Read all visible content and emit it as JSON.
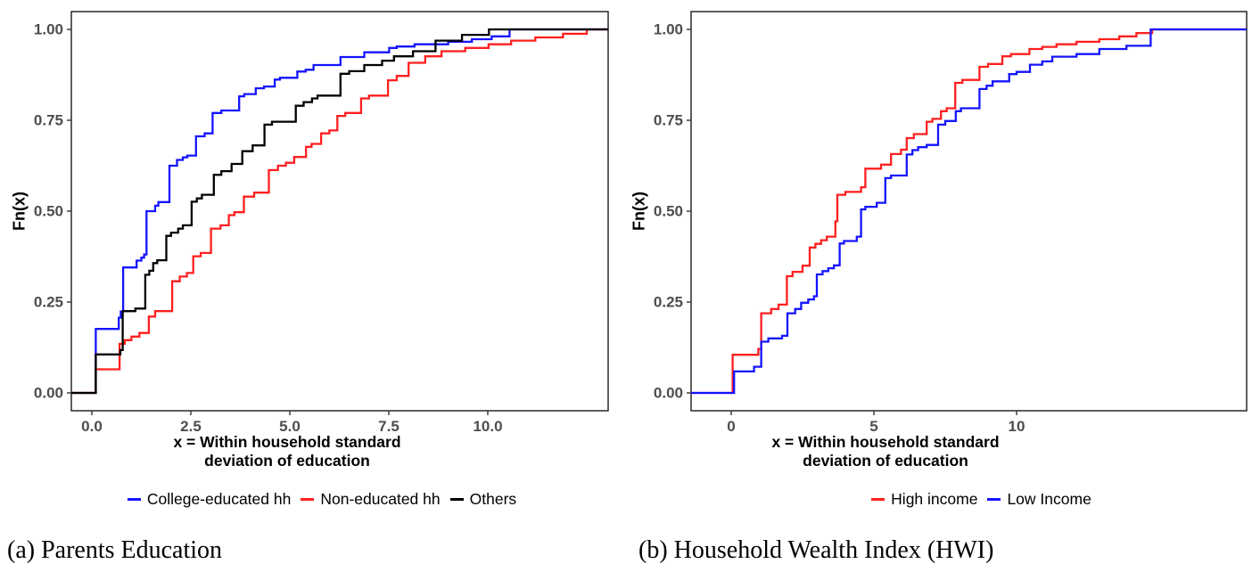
{
  "figure": {
    "caption_a": "(a) Parents Education",
    "caption_b": "(b) Household Wealth Index (HWI)"
  },
  "colors": {
    "blue": "#1414ff",
    "red": "#ff1f1f",
    "black": "#000000",
    "tick_text": "#4d4d4d",
    "panel_border": "#1a1a1a"
  },
  "chart_data": [
    {
      "type": "line",
      "subtype": "ecdf-step",
      "panel": "a",
      "title": "",
      "xlabel": "x = Within household standard deviation of education",
      "xlabel_lines": [
        "x = Within household standard",
        "deviation of education"
      ],
      "ylabel": "Fn(x)",
      "x_ticks": [
        0.0,
        2.5,
        5.0,
        7.5,
        10.0
      ],
      "x_tick_labels": [
        "0.0",
        "2.5",
        "5.0",
        "7.5",
        "10.0"
      ],
      "y_ticks": [
        0.0,
        0.25,
        0.5,
        0.75,
        1.0
      ],
      "y_tick_labels": [
        "0.00",
        "0.25",
        "0.50",
        "0.75",
        "1.00"
      ],
      "xlim": [
        -0.52,
        13.04
      ],
      "ylim": [
        0,
        1
      ],
      "grid": false,
      "legend_position": "bottom",
      "series": [
        {
          "name": "College-educated hh",
          "color": "#1414ff",
          "points": [
            [
              0.1,
              0.176
            ],
            [
              0.68,
              0.207
            ],
            [
              0.73,
              0.224
            ],
            [
              0.79,
              0.345
            ],
            [
              1.13,
              0.364
            ],
            [
              1.25,
              0.372
            ],
            [
              1.32,
              0.381
            ],
            [
              1.38,
              0.5
            ],
            [
              1.6,
              0.515
            ],
            [
              1.68,
              0.525
            ],
            [
              1.96,
              0.625
            ],
            [
              2.15,
              0.641
            ],
            [
              2.3,
              0.648
            ],
            [
              2.41,
              0.653
            ],
            [
              2.63,
              0.706
            ],
            [
              2.85,
              0.714
            ],
            [
              3.05,
              0.77
            ],
            [
              3.27,
              0.777
            ],
            [
              3.72,
              0.816
            ],
            [
              3.85,
              0.822
            ],
            [
              4.14,
              0.838
            ],
            [
              4.35,
              0.843
            ],
            [
              4.62,
              0.862
            ],
            [
              4.75,
              0.867
            ],
            [
              5.19,
              0.884
            ],
            [
              5.4,
              0.889
            ],
            [
              5.6,
              0.902
            ],
            [
              6.28,
              0.924
            ],
            [
              6.88,
              0.937
            ],
            [
              7.51,
              0.949
            ],
            [
              7.7,
              0.953
            ],
            [
              8.15,
              0.959
            ],
            [
              9.0,
              0.966
            ],
            [
              9.6,
              0.973
            ],
            [
              10.1,
              0.981
            ],
            [
              10.55,
              1.0
            ]
          ]
        },
        {
          "name": "Non-educated hh",
          "color": "#ff1f1f",
          "points": [
            [
              0.1,
              0.065
            ],
            [
              0.7,
              0.135
            ],
            [
              0.83,
              0.145
            ],
            [
              1.0,
              0.155
            ],
            [
              1.2,
              0.165
            ],
            [
              1.44,
              0.21
            ],
            [
              1.6,
              0.225
            ],
            [
              2.03,
              0.307
            ],
            [
              2.22,
              0.32
            ],
            [
              2.4,
              0.33
            ],
            [
              2.56,
              0.376
            ],
            [
              2.75,
              0.385
            ],
            [
              3.01,
              0.452
            ],
            [
              3.25,
              0.461
            ],
            [
              3.46,
              0.489
            ],
            [
              3.6,
              0.497
            ],
            [
              3.84,
              0.54
            ],
            [
              4.1,
              0.551
            ],
            [
              4.47,
              0.613
            ],
            [
              4.7,
              0.625
            ],
            [
              4.9,
              0.633
            ],
            [
              5.11,
              0.649
            ],
            [
              5.41,
              0.677
            ],
            [
              5.55,
              0.685
            ],
            [
              5.79,
              0.714
            ],
            [
              6.0,
              0.722
            ],
            [
              6.2,
              0.762
            ],
            [
              6.4,
              0.77
            ],
            [
              6.8,
              0.81
            ],
            [
              7.0,
              0.818
            ],
            [
              7.48,
              0.86
            ],
            [
              7.7,
              0.872
            ],
            [
              8.0,
              0.908
            ],
            [
              8.42,
              0.926
            ],
            [
              8.83,
              0.94
            ],
            [
              9.43,
              0.949
            ],
            [
              10.02,
              0.959
            ],
            [
              10.59,
              0.969
            ],
            [
              11.2,
              0.978
            ],
            [
              11.9,
              0.988
            ],
            [
              12.5,
              1.0
            ]
          ]
        },
        {
          "name": "Others",
          "color": "#000000",
          "points": [
            [
              0.1,
              0.106
            ],
            [
              0.72,
              0.118
            ],
            [
              0.78,
              0.225
            ],
            [
              1.1,
              0.232
            ],
            [
              1.35,
              0.325
            ],
            [
              1.45,
              0.336
            ],
            [
              1.55,
              0.357
            ],
            [
              1.65,
              0.365
            ],
            [
              1.88,
              0.432
            ],
            [
              2.0,
              0.441
            ],
            [
              2.18,
              0.452
            ],
            [
              2.3,
              0.461
            ],
            [
              2.52,
              0.526
            ],
            [
              2.65,
              0.535
            ],
            [
              2.78,
              0.545
            ],
            [
              3.08,
              0.6
            ],
            [
              3.27,
              0.61
            ],
            [
              3.53,
              0.63
            ],
            [
              3.8,
              0.665
            ],
            [
              4.06,
              0.681
            ],
            [
              4.36,
              0.738
            ],
            [
              4.55,
              0.746
            ],
            [
              5.15,
              0.79
            ],
            [
              5.35,
              0.8
            ],
            [
              5.56,
              0.81
            ],
            [
              5.7,
              0.818
            ],
            [
              6.28,
              0.878
            ],
            [
              6.5,
              0.885
            ],
            [
              6.88,
              0.902
            ],
            [
              7.33,
              0.914
            ],
            [
              7.63,
              0.926
            ],
            [
              8.11,
              0.94
            ],
            [
              8.68,
              0.969
            ],
            [
              9.35,
              0.985
            ],
            [
              10.03,
              1.0
            ]
          ]
        }
      ]
    },
    {
      "type": "line",
      "subtype": "ecdf-step",
      "panel": "b",
      "title": "",
      "xlabel": "x = Within household standard deviation of education",
      "xlabel_lines": [
        "x = Within household standard",
        "deviation of education"
      ],
      "ylabel": "Fn(x)",
      "x_ticks": [
        0,
        5,
        10
      ],
      "x_tick_labels": [
        "0",
        "5",
        "10"
      ],
      "y_ticks": [
        0.0,
        0.25,
        0.5,
        0.75,
        1.0
      ],
      "y_tick_labels": [
        "0.00",
        "0.25",
        "0.50",
        "0.75",
        "1.00"
      ],
      "xlim": [
        -1.41,
        18.06
      ],
      "ylim": [
        0,
        1
      ],
      "grid": false,
      "legend_position": "bottom",
      "series": [
        {
          "name": "High income",
          "color": "#ff1f1f",
          "points": [
            [
              0.05,
              0.105
            ],
            [
              0.95,
              0.121
            ],
            [
              1.05,
              0.219
            ],
            [
              1.4,
              0.231
            ],
            [
              1.66,
              0.243
            ],
            [
              1.95,
              0.321
            ],
            [
              2.15,
              0.333
            ],
            [
              2.5,
              0.35
            ],
            [
              2.75,
              0.4
            ],
            [
              2.95,
              0.41
            ],
            [
              3.15,
              0.42
            ],
            [
              3.35,
              0.43
            ],
            [
              3.65,
              0.472
            ],
            [
              3.72,
              0.545
            ],
            [
              4.0,
              0.553
            ],
            [
              4.55,
              0.566
            ],
            [
              4.7,
              0.617
            ],
            [
              5.25,
              0.628
            ],
            [
              5.6,
              0.657
            ],
            [
              5.95,
              0.669
            ],
            [
              6.15,
              0.701
            ],
            [
              6.4,
              0.712
            ],
            [
              6.85,
              0.746
            ],
            [
              7.05,
              0.754
            ],
            [
              7.35,
              0.775
            ],
            [
              7.55,
              0.783
            ],
            [
              7.85,
              0.853
            ],
            [
              8.1,
              0.861
            ],
            [
              8.7,
              0.897
            ],
            [
              9.0,
              0.905
            ],
            [
              9.5,
              0.926
            ],
            [
              9.8,
              0.932
            ],
            [
              10.45,
              0.946
            ],
            [
              10.9,
              0.952
            ],
            [
              11.4,
              0.959
            ],
            [
              12.1,
              0.966
            ],
            [
              12.9,
              0.973
            ],
            [
              13.6,
              0.981
            ],
            [
              14.2,
              0.99
            ],
            [
              14.75,
              1.0
            ]
          ]
        },
        {
          "name": "Low Income",
          "color": "#1414ff",
          "points": [
            [
              0.1,
              0.059
            ],
            [
              0.8,
              0.072
            ],
            [
              1.05,
              0.141
            ],
            [
              1.3,
              0.15
            ],
            [
              1.78,
              0.157
            ],
            [
              1.97,
              0.219
            ],
            [
              2.24,
              0.231
            ],
            [
              2.45,
              0.248
            ],
            [
              2.7,
              0.257
            ],
            [
              2.9,
              0.266
            ],
            [
              3.0,
              0.326
            ],
            [
              3.2,
              0.335
            ],
            [
              3.4,
              0.343
            ],
            [
              3.6,
              0.351
            ],
            [
              3.8,
              0.411
            ],
            [
              3.95,
              0.418
            ],
            [
              4.4,
              0.43
            ],
            [
              4.55,
              0.505
            ],
            [
              4.7,
              0.512
            ],
            [
              5.1,
              0.523
            ],
            [
              5.4,
              0.591
            ],
            [
              5.6,
              0.598
            ],
            [
              6.15,
              0.656
            ],
            [
              6.35,
              0.668
            ],
            [
              6.55,
              0.676
            ],
            [
              6.85,
              0.682
            ],
            [
              7.25,
              0.738
            ],
            [
              7.5,
              0.748
            ],
            [
              7.87,
              0.775
            ],
            [
              8.05,
              0.783
            ],
            [
              8.7,
              0.836
            ],
            [
              8.95,
              0.845
            ],
            [
              9.16,
              0.857
            ],
            [
              9.74,
              0.877
            ],
            [
              10.0,
              0.883
            ],
            [
              10.47,
              0.903
            ],
            [
              10.9,
              0.912
            ],
            [
              11.25,
              0.925
            ],
            [
              12.1,
              0.932
            ],
            [
              12.9,
              0.946
            ],
            [
              13.85,
              0.955
            ],
            [
              14.7,
              1.0
            ]
          ]
        }
      ]
    }
  ]
}
